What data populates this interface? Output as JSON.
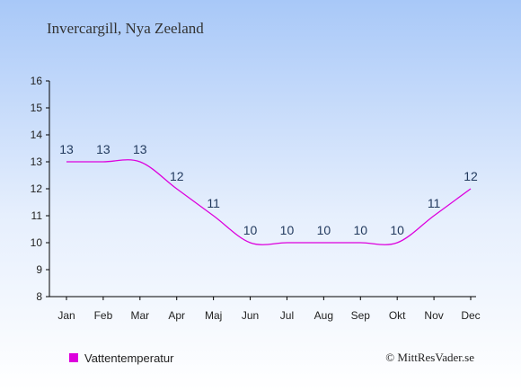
{
  "chart_data": {
    "type": "line",
    "title": "Invercargill, Nya Zeeland",
    "categories": [
      "Jan",
      "Feb",
      "Mar",
      "Apr",
      "Maj",
      "Jun",
      "Jul",
      "Aug",
      "Sep",
      "Okt",
      "Nov",
      "Dec"
    ],
    "series": [
      {
        "name": "Vattentemperatur",
        "values": [
          13,
          13,
          13,
          12,
          11,
          10,
          10,
          10,
          10,
          10,
          11,
          12
        ],
        "color": "#dd00dd"
      }
    ],
    "ylim": [
      8,
      16
    ],
    "yticks": [
      "8",
      "9",
      "10",
      "11",
      "12",
      "13",
      "14",
      "15",
      "16"
    ],
    "grid": false,
    "legend": "bottom-left",
    "xlabel": "",
    "ylabel": ""
  },
  "credit": "© MittResVader.se",
  "colors": {
    "background_top": "#a8c8f8",
    "background_bottom": "#ffffff",
    "label_color": "#223a5e"
  }
}
